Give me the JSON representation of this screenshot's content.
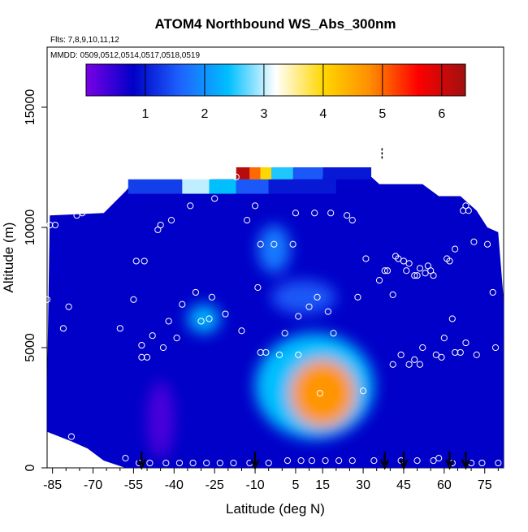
{
  "chart_data": {
    "type": "heatmap",
    "title": "ATOM4 Northbound WS_Abs_300nm",
    "subtitle_flights": "Flts: 7,8,9,10,11,12",
    "subtitle_dates": "MMDD: 0509,0512,0514,0517,0518,0519",
    "xlabel": "Latitude (deg N)",
    "ylabel": "Altitude (m)",
    "xlim": [
      -87,
      82
    ],
    "ylim": [
      0,
      17500
    ],
    "x_ticks": [
      -85,
      -70,
      -55,
      -40,
      -25,
      -10,
      5,
      15,
      30,
      45,
      60,
      75
    ],
    "x_tick_labels": [
      "-85",
      "-70",
      "-55",
      "-40",
      "-25",
      "-10",
      "5",
      "15",
      "30",
      "45",
      "60",
      "75"
    ],
    "y_ticks": [
      0,
      5000,
      10000,
      15000
    ],
    "y_tick_labels": [
      "0",
      "5000",
      "10000",
      "15000"
    ],
    "colorbar": {
      "range": [
        0,
        6.4
      ],
      "ticks": [
        1,
        2,
        3,
        4,
        5,
        6
      ],
      "tick_labels": [
        "1",
        "2",
        "3",
        "4",
        "5",
        "6"
      ],
      "colors": [
        "#7a00e6",
        "#0000c8",
        "#1e64ff",
        "#00bfff",
        "#ffffff",
        "#ffd700",
        "#ff8c00",
        "#ff0000",
        "#a01010"
      ]
    },
    "field_background": 0.8,
    "blobs": [
      {
        "x": 15,
        "y": 3100,
        "rx": 12,
        "ry": 1400,
        "value": 4.7
      },
      {
        "x": 12,
        "y": 3400,
        "rx": 22,
        "ry": 2200,
        "value": 2.4
      },
      {
        "x": -29,
        "y": 6200,
        "rx": 6,
        "ry": 600,
        "value": 2.3
      },
      {
        "x": -3,
        "y": 9100,
        "rx": 6,
        "ry": 1000,
        "value": 1.8
      },
      {
        "x": 8,
        "y": 7100,
        "rx": 12,
        "ry": 700,
        "value": 1.5
      },
      {
        "x": -45,
        "y": 2000,
        "rx": 5,
        "ry": 1600,
        "value": 0.3
      }
    ],
    "top_band": [
      {
        "x0": -57,
        "x1": -37,
        "value": 1.3
      },
      {
        "x0": -37,
        "x1": -27,
        "value": 3.0
      },
      {
        "x0": -27,
        "x1": -17,
        "value": 2.4
      },
      {
        "x0": -17,
        "x1": -5,
        "value": 1.5
      },
      {
        "x0": -5,
        "x1": 20,
        "value": 1.0
      }
    ],
    "top_strip": [
      {
        "x0": -17,
        "x1": -12,
        "value": 6.2
      },
      {
        "x0": -12,
        "x1": -8,
        "value": 5.0
      },
      {
        "x0": -8,
        "x1": -4,
        "value": 4.0
      },
      {
        "x0": -4,
        "x1": 4,
        "value": 2.5
      },
      {
        "x0": 4,
        "x1": 15,
        "value": 1.5
      },
      {
        "x0": 15,
        "x1": 33,
        "value": 1.0
      }
    ],
    "observation_points": [
      {
        "x": -87,
        "y": 7000
      },
      {
        "x": -86,
        "y": 10100
      },
      {
        "x": -84,
        "y": 10100
      },
      {
        "x": -81,
        "y": 5800
      },
      {
        "x": -79,
        "y": 6700
      },
      {
        "x": -78,
        "y": 1300
      },
      {
        "x": -76,
        "y": 10500
      },
      {
        "x": -74,
        "y": 10600
      },
      {
        "x": -72,
        "y": 11000
      },
      {
        "x": -70,
        "y": 11300
      },
      {
        "x": -68,
        "y": 11400
      },
      {
        "x": -65,
        "y": 11500
      },
      {
        "x": -60,
        "y": 5800
      },
      {
        "x": -58,
        "y": 400
      },
      {
        "x": -55,
        "y": 7000
      },
      {
        "x": -54,
        "y": 8600
      },
      {
        "x": -53,
        "y": 200
      },
      {
        "x": -52,
        "y": 4600
      },
      {
        "x": -52,
        "y": 5100
      },
      {
        "x": -51,
        "y": 8600
      },
      {
        "x": -50,
        "y": 4600
      },
      {
        "x": -49,
        "y": 200
      },
      {
        "x": -48,
        "y": 5500
      },
      {
        "x": -46,
        "y": 9900
      },
      {
        "x": -45,
        "y": 10100
      },
      {
        "x": -44,
        "y": 5000
      },
      {
        "x": -43,
        "y": 200
      },
      {
        "x": -42,
        "y": 6100
      },
      {
        "x": -41,
        "y": 10300
      },
      {
        "x": -39,
        "y": 5400
      },
      {
        "x": -38,
        "y": 200
      },
      {
        "x": -37,
        "y": 6800
      },
      {
        "x": -34,
        "y": 10900
      },
      {
        "x": -33,
        "y": 200
      },
      {
        "x": -32,
        "y": 7300
      },
      {
        "x": -30,
        "y": 6100
      },
      {
        "x": -28,
        "y": 200
      },
      {
        "x": -27,
        "y": 6200
      },
      {
        "x": -26,
        "y": 7100
      },
      {
        "x": -25,
        "y": 11200
      },
      {
        "x": -23,
        "y": 200
      },
      {
        "x": -21,
        "y": 6400
      },
      {
        "x": -18,
        "y": 200
      },
      {
        "x": -17,
        "y": 12100
      },
      {
        "x": -15,
        "y": 5700
      },
      {
        "x": -13,
        "y": 10300
      },
      {
        "x": -12,
        "y": 200
      },
      {
        "x": -10,
        "y": 10900
      },
      {
        "x": -9,
        "y": 7500
      },
      {
        "x": -8,
        "y": 9300
      },
      {
        "x": -8,
        "y": 4800
      },
      {
        "x": -6,
        "y": 4800
      },
      {
        "x": -5,
        "y": 200
      },
      {
        "x": -3,
        "y": 9300
      },
      {
        "x": -1,
        "y": 4700
      },
      {
        "x": 1,
        "y": 5600
      },
      {
        "x": 2,
        "y": 300
      },
      {
        "x": 4,
        "y": 9300
      },
      {
        "x": 5,
        "y": 10600
      },
      {
        "x": 6,
        "y": 6300
      },
      {
        "x": 6,
        "y": 4700
      },
      {
        "x": 7,
        "y": 300
      },
      {
        "x": 10,
        "y": 6700
      },
      {
        "x": 11,
        "y": 300
      },
      {
        "x": 12,
        "y": 10600
      },
      {
        "x": 13,
        "y": 7100
      },
      {
        "x": 14,
        "y": 3100
      },
      {
        "x": 16,
        "y": 300
      },
      {
        "x": 17,
        "y": 6500
      },
      {
        "x": 18,
        "y": 10600
      },
      {
        "x": 19,
        "y": 5600
      },
      {
        "x": 21,
        "y": 300
      },
      {
        "x": 24,
        "y": 10500
      },
      {
        "x": 26,
        "y": 10300
      },
      {
        "x": 26,
        "y": 300
      },
      {
        "x": 28,
        "y": 7100
      },
      {
        "x": 30,
        "y": 3200
      },
      {
        "x": 31,
        "y": 8700
      },
      {
        "x": 34,
        "y": 300
      },
      {
        "x": 36,
        "y": 7800
      },
      {
        "x": 38,
        "y": 8200
      },
      {
        "x": 39,
        "y": 8200
      },
      {
        "x": 41,
        "y": 4300
      },
      {
        "x": 41,
        "y": 7200
      },
      {
        "x": 42,
        "y": 8800
      },
      {
        "x": 43,
        "y": 8700
      },
      {
        "x": 44,
        "y": 4700
      },
      {
        "x": 44,
        "y": 300
      },
      {
        "x": 45,
        "y": 8600
      },
      {
        "x": 46,
        "y": 8200
      },
      {
        "x": 47,
        "y": 4300
      },
      {
        "x": 47,
        "y": 8500
      },
      {
        "x": 49,
        "y": 8000
      },
      {
        "x": 49,
        "y": 4500
      },
      {
        "x": 50,
        "y": 8000
      },
      {
        "x": 50,
        "y": 300
      },
      {
        "x": 51,
        "y": 4300
      },
      {
        "x": 51,
        "y": 8300
      },
      {
        "x": 52,
        "y": 5000
      },
      {
        "x": 53,
        "y": 8100
      },
      {
        "x": 54,
        "y": 8400
      },
      {
        "x": 55,
        "y": 8200
      },
      {
        "x": 56,
        "y": 300
      },
      {
        "x": 56,
        "y": 8000
      },
      {
        "x": 57,
        "y": 4700
      },
      {
        "x": 58,
        "y": 400
      },
      {
        "x": 59,
        "y": 4600
      },
      {
        "x": 60,
        "y": 5400
      },
      {
        "x": 61,
        "y": 8700
      },
      {
        "x": 62,
        "y": 8600
      },
      {
        "x": 63,
        "y": 200
      },
      {
        "x": 63,
        "y": 6200
      },
      {
        "x": 64,
        "y": 4800
      },
      {
        "x": 64,
        "y": 9100
      },
      {
        "x": 66,
        "y": 4800
      },
      {
        "x": 67,
        "y": 10700
      },
      {
        "x": 68,
        "y": 5200
      },
      {
        "x": 68,
        "y": 10900
      },
      {
        "x": 69,
        "y": 10700
      },
      {
        "x": 70,
        "y": 200
      },
      {
        "x": 71,
        "y": 9400
      },
      {
        "x": 72,
        "y": 4700
      },
      {
        "x": 74,
        "y": 200
      },
      {
        "x": 76,
        "y": 9300
      },
      {
        "x": 78,
        "y": 7300
      },
      {
        "x": 79,
        "y": 5000
      },
      {
        "x": 80,
        "y": 200
      }
    ],
    "arrows_x": [
      -52,
      -10,
      38,
      45,
      62,
      68
    ],
    "dashed_marker": {
      "x": 37,
      "y0": 12800,
      "y1": 13300
    }
  }
}
